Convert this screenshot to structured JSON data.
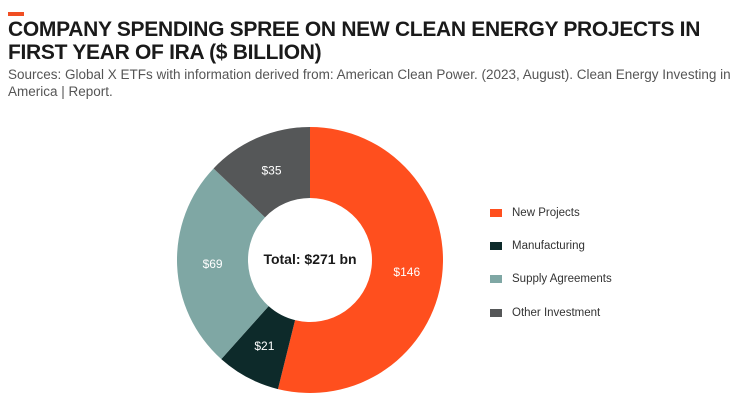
{
  "header": {
    "title": "COMPANY SPENDING SPREE ON NEW CLEAN ENERGY PROJECTS IN FIRST YEAR OF IRA ($ BILLION)",
    "subtitle": "Sources: Global X ETFs with information derived from: American Clean Power. (2023, August). Clean Energy Investing in America | Report.",
    "accent_color": "#f04e23"
  },
  "chart_data": {
    "type": "pie",
    "variant": "donut",
    "title": "COMPANY SPENDING SPREE ON NEW CLEAN ENERGY PROJECTS IN FIRST YEAR OF IRA ($ BILLION)",
    "center_label": "Total: $271 bn",
    "slices": [
      {
        "name": "New Projects",
        "value": 146,
        "label": "$146",
        "color": "#ff4f1e"
      },
      {
        "name": "Manufacturing",
        "value": 21,
        "label": "$21",
        "color": "#0d2a2a"
      },
      {
        "name": "Supply Agreements",
        "value": 69,
        "label": "$69",
        "color": "#7fa7a4"
      },
      {
        "name": "Other Investment",
        "value": 35,
        "label": "$35",
        "color": "#555758"
      }
    ],
    "legend_position": "right"
  }
}
